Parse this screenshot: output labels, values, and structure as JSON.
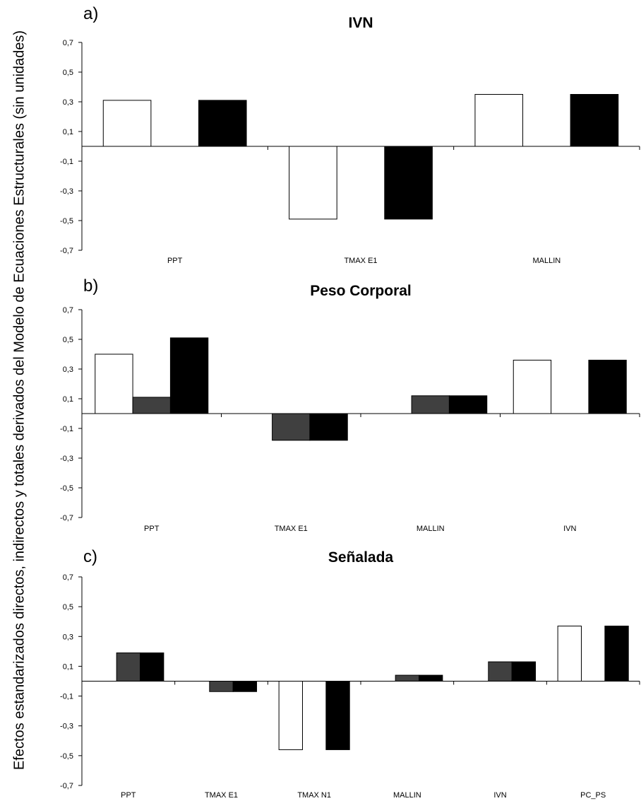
{
  "y_axis_label": "Efectos estandarizados directos, indirectos y totales derivados del Modelo de Ecuaciones Estructurales (sin unidades)",
  "colors": {
    "direct": "#ffffff",
    "indirect": "#404040",
    "total": "#000000",
    "axis": "#000000"
  },
  "chart_data": [
    {
      "type": "bar",
      "panel_letter": "a)",
      "title": "IVN",
      "categories": [
        "PPT",
        "TMAX E1",
        "MALLIN"
      ],
      "series": [
        {
          "key": "direct",
          "values": [
            0.31,
            -0.49,
            0.35
          ]
        },
        {
          "key": "indirect",
          "values": [
            0,
            0,
            0
          ]
        },
        {
          "key": "total",
          "values": [
            0.31,
            -0.49,
            0.35
          ]
        }
      ],
      "ylim": [
        -0.7,
        0.7
      ],
      "yticks": [
        "0,7",
        "0,5",
        "0,3",
        "0,1",
        "-0,1",
        "-0,3",
        "-0,5",
        "-0,7"
      ],
      "ytick_values": [
        0.7,
        0.5,
        0.3,
        0.1,
        -0.1,
        -0.3,
        -0.5,
        -0.7
      ],
      "grid": false,
      "legend": "none"
    },
    {
      "type": "bar",
      "panel_letter": "b)",
      "title": "Peso Corporal",
      "categories": [
        "PPT",
        "TMAX E1",
        "MALLIN",
        "IVN"
      ],
      "series": [
        {
          "key": "direct",
          "values": [
            0.4,
            0,
            0,
            0.36
          ]
        },
        {
          "key": "indirect",
          "values": [
            0.11,
            -0.18,
            0.12,
            0
          ]
        },
        {
          "key": "total",
          "values": [
            0.51,
            -0.18,
            0.12,
            0.36
          ]
        }
      ],
      "ylim": [
        -0.7,
        0.7
      ],
      "yticks": [
        "0,7",
        "0,5",
        "0,3",
        "0,1",
        "-0,1",
        "-0,3",
        "-0,5",
        "-0,7"
      ],
      "ytick_values": [
        0.7,
        0.5,
        0.3,
        0.1,
        -0.1,
        -0.3,
        -0.5,
        -0.7
      ],
      "grid": false,
      "legend": "none"
    },
    {
      "type": "bar",
      "panel_letter": "c)",
      "title": "Señalada",
      "categories": [
        "PPT",
        "TMAX E1",
        "TMAX N1",
        "MALLIN",
        "IVN",
        "PC_PS"
      ],
      "series": [
        {
          "key": "direct",
          "values": [
            0,
            0,
            -0.46,
            0,
            0,
            0.37
          ]
        },
        {
          "key": "indirect",
          "values": [
            0.19,
            -0.07,
            0,
            0.04,
            0.13,
            0
          ]
        },
        {
          "key": "total",
          "values": [
            0.19,
            -0.07,
            -0.46,
            0.04,
            0.13,
            0.37
          ]
        }
      ],
      "ylim": [
        -0.7,
        0.7
      ],
      "yticks": [
        "0,7",
        "0,5",
        "0,3",
        "0,1",
        "-0,1",
        "-0,3",
        "-0,5",
        "-0,7"
      ],
      "ytick_values": [
        0.7,
        0.5,
        0.3,
        0.1,
        -0.1,
        -0.3,
        -0.5,
        -0.7
      ],
      "grid": false,
      "legend": "none"
    }
  ]
}
